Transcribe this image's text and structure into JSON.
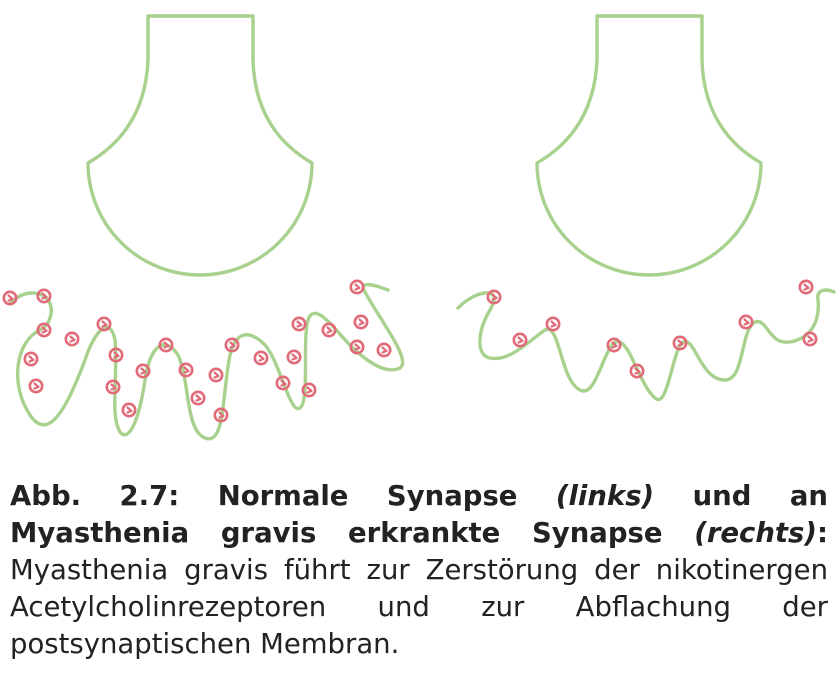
{
  "diagram": {
    "colors": {
      "membrane": "#a9d18e",
      "receptor": "#e06a78",
      "background": "#ffffff"
    }
  },
  "caption": {
    "label_a": "Abb. 2.7: Normale Synapse ",
    "italic_a": "(links)",
    "label_b": " und an Myasthenia gravis erkrankte Synapse ",
    "italic_b": "(rechts)",
    "label_c": ":",
    "body": " Myasthenia gravis führt zur Zerstörung der nikotinergen Acetylcholinrezeptoren und zur Abflachung der postsynaptischen Membran."
  }
}
